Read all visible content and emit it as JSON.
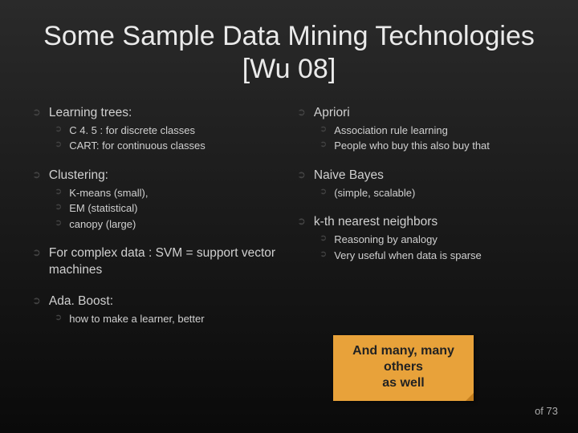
{
  "title": "Some Sample Data Mining Technologies [Wu 08]",
  "left": {
    "i0": {
      "label": "Learning trees:",
      "s0": "C 4. 5 : for discrete classes",
      "s1": "CART: for continuous classes"
    },
    "i1": {
      "label": "Clustering:",
      "s0": "K-means (small),",
      "s1": "EM (statistical)",
      "s2": "canopy (large)"
    },
    "i2": {
      "label": "For complex data : SVM  = support vector machines"
    },
    "i3": {
      "label": "Ada. Boost:",
      "s0": "how to make a learner, better"
    }
  },
  "right": {
    "i0": {
      "label": "Apriori",
      "s0": "Association rule learning",
      "s1": "People who buy this also buy that"
    },
    "i1": {
      "label": "Naive Bayes",
      "s0": "(simple, scalable)"
    },
    "i2": {
      "label": "k-th nearest neighbors",
      "s0": "Reasoning by analogy",
      "s1": "Very useful when data is sparse"
    }
  },
  "callout": {
    "l0": "And many, many",
    "l1": "others",
    "l2": "as well"
  },
  "footer": "of 73",
  "bullet_glyph": "➲",
  "colors": {
    "bullet": "#444444",
    "text": "#d0d0d0",
    "title": "#eaeaea",
    "callout_bg": "#e8a23a",
    "callout_text": "#222222"
  }
}
